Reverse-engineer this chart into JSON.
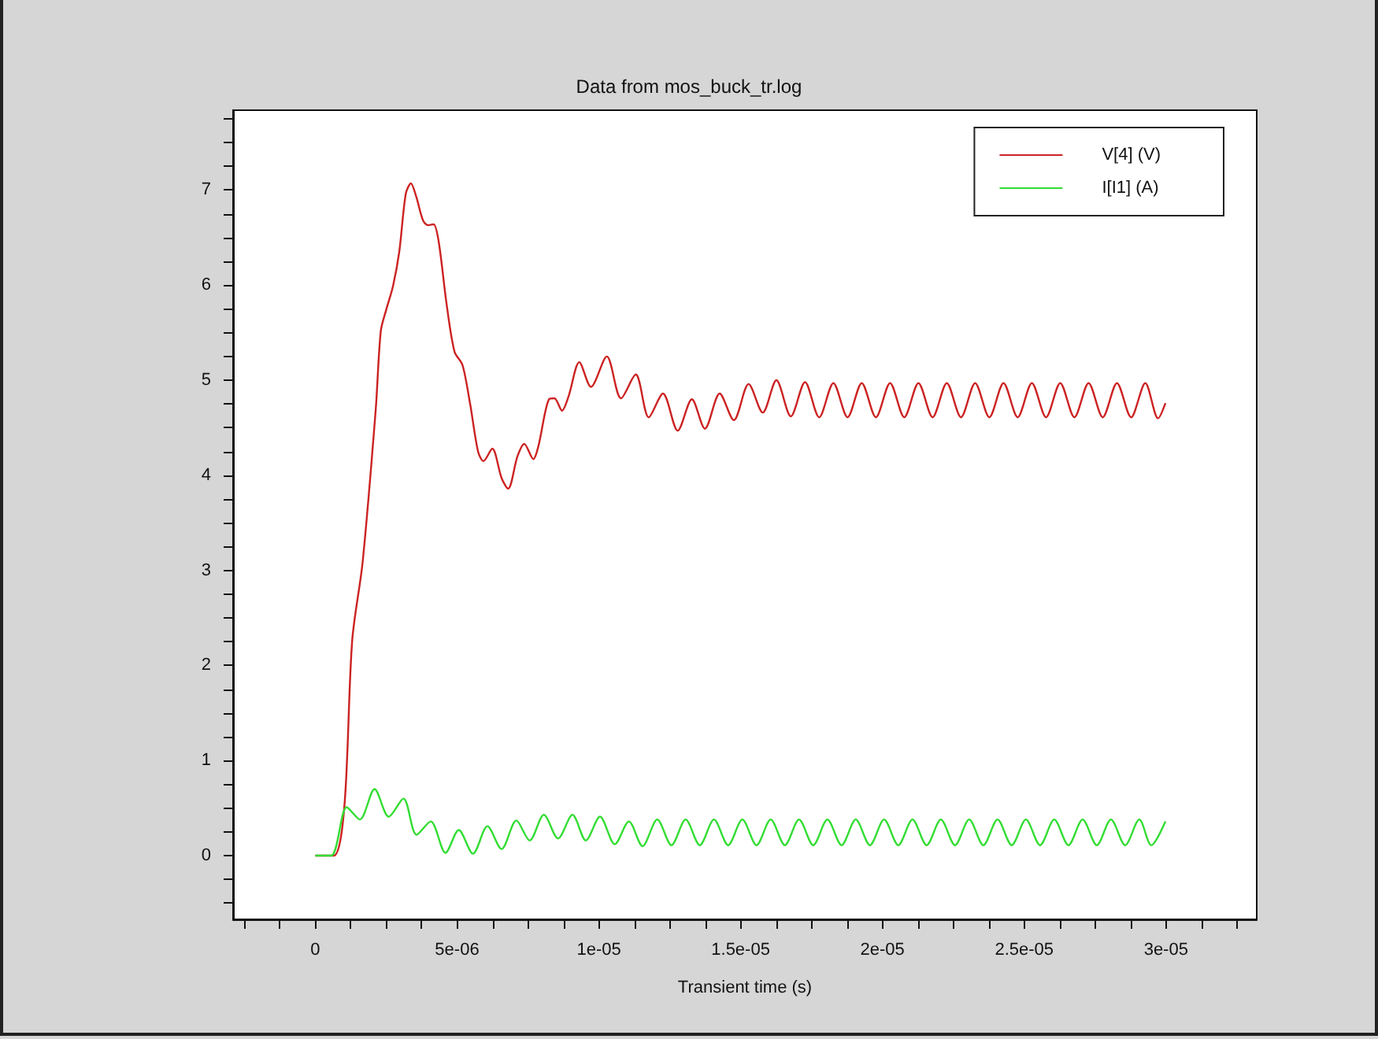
{
  "chart_data": {
    "type": "line",
    "title": "Data from mos_buck_tr.log",
    "xlabel": "Transient time (s)",
    "xlim": [
      -2.9e-06,
      3.32e-05
    ],
    "xticks": [
      {
        "value": -2.5e-06,
        "label": null
      },
      {
        "value": -1.25e-06,
        "label": null
      },
      {
        "value": 0,
        "label": "0"
      },
      {
        "value": 1.25e-06,
        "label": null
      },
      {
        "value": 2.5e-06,
        "label": null
      },
      {
        "value": 3.75e-06,
        "label": null
      },
      {
        "value": 5e-06,
        "label": "5e-06"
      },
      {
        "value": 6.25e-06,
        "label": null
      },
      {
        "value": 7.5e-06,
        "label": null
      },
      {
        "value": 8.75e-06,
        "label": null
      },
      {
        "value": 1e-05,
        "label": "1e-05"
      },
      {
        "value": 1.125e-05,
        "label": null
      },
      {
        "value": 1.25e-05,
        "label": null
      },
      {
        "value": 1.375e-05,
        "label": null
      },
      {
        "value": 1.5e-05,
        "label": "1.5e-05"
      },
      {
        "value": 1.625e-05,
        "label": null
      },
      {
        "value": 1.75e-05,
        "label": null
      },
      {
        "value": 1.875e-05,
        "label": null
      },
      {
        "value": 2e-05,
        "label": "2e-05"
      },
      {
        "value": 2.125e-05,
        "label": null
      },
      {
        "value": 2.25e-05,
        "label": null
      },
      {
        "value": 2.375e-05,
        "label": null
      },
      {
        "value": 2.5e-05,
        "label": "2.5e-05"
      },
      {
        "value": 2.625e-05,
        "label": null
      },
      {
        "value": 2.75e-05,
        "label": null
      },
      {
        "value": 2.875e-05,
        "label": null
      },
      {
        "value": 3e-05,
        "label": "3e-05"
      },
      {
        "value": 3.125e-05,
        "label": null
      },
      {
        "value": 3.25e-05,
        "label": null
      }
    ],
    "ylim": [
      -0.67,
      7.84
    ],
    "yticks": [
      {
        "value": -0.5,
        "label": null
      },
      {
        "value": -0.25,
        "label": null
      },
      0,
      {
        "value": 0.25,
        "label": null
      },
      {
        "value": 0.5,
        "label": null
      },
      {
        "value": 0.75,
        "label": null
      },
      1,
      {
        "value": 1.25,
        "label": null
      },
      {
        "value": 1.5,
        "label": null
      },
      {
        "value": 1.75,
        "label": null
      },
      2,
      {
        "value": 2.25,
        "label": null
      },
      {
        "value": 2.5,
        "label": null
      },
      {
        "value": 2.75,
        "label": null
      },
      3,
      {
        "value": 3.25,
        "label": null
      },
      {
        "value": 3.5,
        "label": null
      },
      {
        "value": 3.75,
        "label": null
      },
      4,
      {
        "value": 4.25,
        "label": null
      },
      {
        "value": 4.5,
        "label": null
      },
      {
        "value": 4.75,
        "label": null
      },
      5,
      {
        "value": 5.25,
        "label": null
      },
      {
        "value": 5.5,
        "label": null
      },
      {
        "value": 5.75,
        "label": null
      },
      6,
      {
        "value": 6.25,
        "label": null
      },
      {
        "value": 6.5,
        "label": null
      },
      {
        "value": 6.75,
        "label": null
      },
      7,
      {
        "value": 7.25,
        "label": null
      },
      {
        "value": 7.5,
        "label": null
      },
      {
        "value": 7.75,
        "label": null
      }
    ],
    "grid": false,
    "legend": "top right",
    "marker": "none",
    "line_style": "solid",
    "series": [
      {
        "name": "V[4] (V)",
        "color": "#cc2222",
        "x": [
          0,
          6.5e-07,
          1.02e-06,
          1.3e-06,
          1.67e-06,
          2.13e-06,
          2.31e-06,
          2.5e-06,
          2.74e-06,
          2.96e-06,
          3.19e-06,
          3.37e-06,
          3.56e-06,
          3.8e-06,
          3.98e-06,
          4.17e-06,
          4.35e-06,
          4.63e-06,
          4.91e-06,
          5.19e-06,
          5.46e-06,
          5.74e-06,
          5.93e-06,
          6.24e-06,
          6.57e-06,
          6.8e-06,
          7.13e-06,
          7.37e-06,
          7.69e-06,
          7.87e-06,
          8.24e-06,
          8.43e-06,
          8.7e-06,
          8.93e-06,
          9.31e-06,
          9.72e-06,
          1.028e-05,
          1.078e-05,
          1.13e-05,
          1.176e-05,
          1.226e-05,
          1.278e-05,
          1.328e-05,
          1.374e-05,
          1.426e-05,
          1.476e-05,
          1.528e-05,
          1.578e-05,
          1.626e-05,
          1.677e-05,
          1.727e-05,
          1.777e-05,
          1.827e-05,
          1.877e-05,
          1.927e-05,
          1.977e-05,
          2.027e-05,
          2.077e-05,
          2.127e-05,
          2.177e-05,
          2.227e-05,
          2.277e-05,
          2.327e-05,
          2.377e-05,
          2.427e-05,
          2.477e-05,
          2.527e-05,
          2.577e-05,
          2.627e-05,
          2.677e-05,
          2.727e-05,
          2.777e-05,
          2.827e-05,
          2.877e-05,
          2.927e-05,
          2.972e-05,
          2.998e-05
        ],
        "values": [
          0,
          0,
          0.5,
          2.26,
          3.09,
          4.69,
          5.52,
          5.74,
          5.99,
          6.35,
          6.96,
          7.07,
          6.93,
          6.68,
          6.63,
          6.64,
          6.46,
          5.8,
          5.3,
          5.16,
          4.75,
          4.25,
          4.15,
          4.28,
          3.97,
          3.86,
          4.2,
          4.33,
          4.17,
          4.31,
          4.8,
          4.81,
          4.68,
          4.83,
          5.19,
          4.93,
          5.25,
          4.81,
          5.06,
          4.61,
          4.86,
          4.47,
          4.8,
          4.49,
          4.86,
          4.58,
          4.96,
          4.66,
          5.0,
          4.62,
          4.98,
          4.61,
          4.97,
          4.61,
          4.97,
          4.61,
          4.97,
          4.61,
          4.97,
          4.61,
          4.97,
          4.61,
          4.97,
          4.61,
          4.97,
          4.61,
          4.97,
          4.61,
          4.97,
          4.61,
          4.97,
          4.61,
          4.97,
          4.61,
          4.97,
          4.6,
          4.76
        ]
      },
      {
        "name": "I[I1] (A)",
        "color": "#33dd33",
        "x": [
          0,
          5.6e-07,
          1.11e-06,
          1.57e-06,
          2.09e-06,
          2.59e-06,
          3.11e-06,
          3.57e-06,
          4.07e-06,
          4.59e-06,
          5.06e-06,
          5.56e-06,
          6.07e-06,
          6.57e-06,
          7.09e-06,
          7.56e-06,
          8.06e-06,
          8.56e-06,
          9.07e-06,
          9.54e-06,
          1.004e-05,
          1.056e-05,
          1.106e-05,
          1.154e-05,
          1.206e-05,
          1.256e-05,
          1.306e-05,
          1.356e-05,
          1.406e-05,
          1.456e-05,
          1.506e-05,
          1.556e-05,
          1.606e-05,
          1.656e-05,
          1.706e-05,
          1.756e-05,
          1.806e-05,
          1.856e-05,
          1.906e-05,
          1.956e-05,
          2.006e-05,
          2.056e-05,
          2.106e-05,
          2.156e-05,
          2.206e-05,
          2.256e-05,
          2.306e-05,
          2.356e-05,
          2.406e-05,
          2.456e-05,
          2.506e-05,
          2.556e-05,
          2.606e-05,
          2.656e-05,
          2.706e-05,
          2.756e-05,
          2.806e-05,
          2.856e-05,
          2.906e-05,
          2.948e-05,
          2.998e-05
        ],
        "values": [
          0,
          0,
          0.51,
          0.38,
          0.7,
          0.41,
          0.6,
          0.22,
          0.36,
          0.03,
          0.27,
          0.02,
          0.31,
          0.07,
          0.37,
          0.16,
          0.43,
          0.18,
          0.43,
          0.16,
          0.41,
          0.12,
          0.36,
          0.1,
          0.38,
          0.11,
          0.38,
          0.11,
          0.38,
          0.11,
          0.38,
          0.11,
          0.38,
          0.11,
          0.38,
          0.11,
          0.38,
          0.11,
          0.38,
          0.11,
          0.38,
          0.11,
          0.38,
          0.11,
          0.38,
          0.11,
          0.38,
          0.11,
          0.38,
          0.11,
          0.38,
          0.11,
          0.38,
          0.11,
          0.38,
          0.11,
          0.38,
          0.11,
          0.38,
          0.11,
          0.36
        ]
      }
    ]
  }
}
